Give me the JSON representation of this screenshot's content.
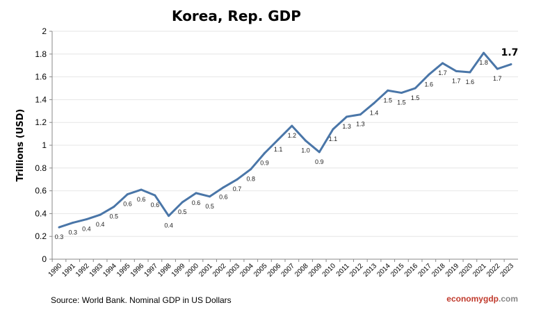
{
  "chart_data": {
    "type": "line",
    "title": "Korea, Rep. GDP",
    "ylabel": "Trillions (USD)",
    "xlabel": "",
    "ylim": [
      0,
      2
    ],
    "yticks": [
      "0",
      "0.2",
      "0.4",
      "0.6",
      "0.8",
      "1",
      "1.2",
      "1.4",
      "1.6",
      "1.8",
      "2"
    ],
    "grid": true,
    "x": [
      "1990",
      "1991",
      "1992",
      "1993",
      "1994",
      "1995",
      "1996",
      "1997",
      "1998",
      "1999",
      "2000",
      "2001",
      "2002",
      "2003",
      "2004",
      "2005",
      "2006",
      "2007",
      "2008",
      "2009",
      "2010",
      "2011",
      "2012",
      "2013",
      "2014",
      "2015",
      "2016",
      "2017",
      "2018",
      "2019",
      "2020",
      "2021",
      "2022",
      "2023"
    ],
    "series": [
      {
        "values": [
          0.28,
          0.32,
          0.35,
          0.39,
          0.46,
          0.57,
          0.61,
          0.56,
          0.38,
          0.5,
          0.58,
          0.55,
          0.63,
          0.7,
          0.79,
          0.93,
          1.05,
          1.17,
          1.04,
          0.94,
          1.14,
          1.25,
          1.27,
          1.37,
          1.48,
          1.46,
          1.5,
          1.62,
          1.72,
          1.65,
          1.64,
          1.81,
          1.67,
          1.71
        ],
        "labels": [
          "0.3",
          "0.3",
          "0.4",
          "0.4",
          "0.5",
          "0.6",
          "0.6",
          "0.6",
          "0.4",
          "0.5",
          "0.6",
          "0.5",
          "0.6",
          "0.7",
          "0.8",
          "0.9",
          "1.1",
          "1.2",
          "1.0",
          "0.9",
          "1.1",
          "1.3",
          "1.3",
          "1.4",
          "1.5",
          "1.5",
          "1.5",
          "1.6",
          "1.7",
          "1.7",
          "1.6",
          "1.8",
          "1.7",
          ""
        ],
        "color": "#4a76a8"
      }
    ],
    "last_label": "1.7"
  },
  "source": "Source: World Bank.  Nominal GDP  in US Dollars",
  "brand": {
    "part1": "economy",
    "part2": "gdp",
    "part3": ".com",
    "color1": "#c0392b",
    "color2": "#888888"
  }
}
